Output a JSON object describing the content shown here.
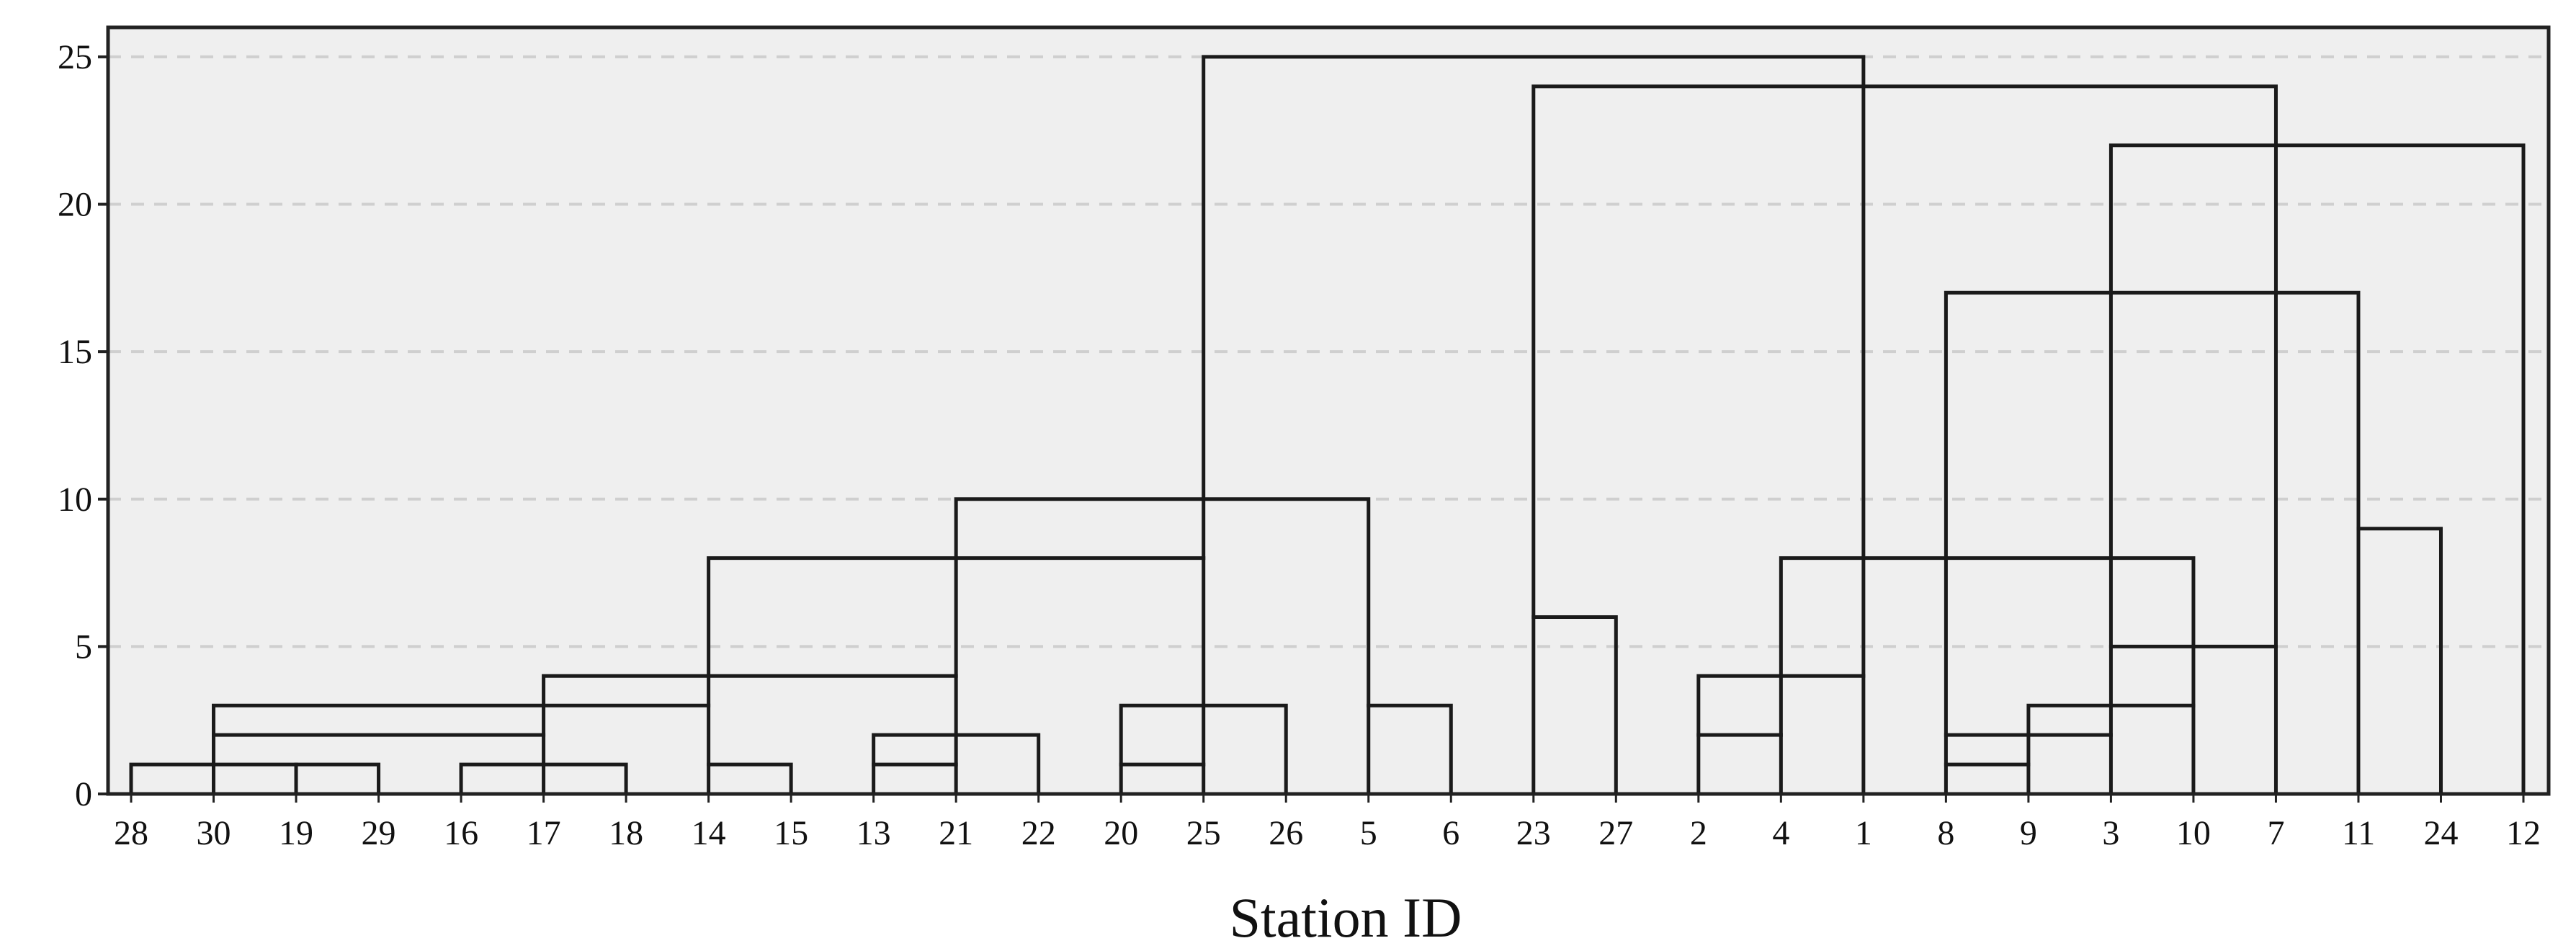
{
  "chart_data": {
    "type": "dendrogram",
    "title": "",
    "xlabel": "Station ID",
    "ylabel": "",
    "ylim": [
      0,
      26
    ],
    "yticks": [
      0,
      5,
      10,
      15,
      20,
      25
    ],
    "grid": "horizontal dashed",
    "background": "#efefef",
    "leaves": [
      "28",
      "30",
      "19",
      "29",
      "16",
      "17",
      "18",
      "14",
      "15",
      "13",
      "21",
      "22",
      "20",
      "25",
      "26",
      "5",
      "6",
      "23",
      "27",
      "2",
      "4",
      "1",
      "8",
      "9",
      "3",
      "10",
      "7",
      "11",
      "24",
      "12"
    ],
    "merges": [
      {
        "left": "L:28",
        "right": "L:30",
        "height": 1
      },
      {
        "left": "L:30",
        "right": "L:19",
        "height": 1
      },
      {
        "left": "L:19",
        "right": "L:29",
        "height": 1
      },
      {
        "left": "L:16",
        "right": "L:17",
        "height": 1
      },
      {
        "left": "L:17",
        "right": "L:18",
        "height": 1
      },
      {
        "left": "L:14",
        "right": "L:15",
        "height": 1
      },
      {
        "left": "L:13",
        "right": "L:21",
        "height": 1
      },
      {
        "left": "L:20",
        "right": "L:25",
        "height": 1
      },
      {
        "left": "L:8",
        "right": "L:9",
        "height": 1
      },
      {
        "left": "L:30",
        "right": "L:17",
        "height": 2
      },
      {
        "left": "L:13",
        "right": "L:22",
        "height": 2
      },
      {
        "left": "L:2",
        "right": "L:4",
        "height": 2
      },
      {
        "left": "L:8",
        "right": "L:3",
        "height": 2
      },
      {
        "left": "L:30",
        "right": "L:14",
        "height": 3
      },
      {
        "left": "L:20",
        "right": "L:26",
        "height": 3
      },
      {
        "left": "L:5",
        "right": "L:6",
        "height": 3
      },
      {
        "left": "L:9",
        "right": "L:10",
        "height": 3
      },
      {
        "left": "L:17",
        "right": "L:21",
        "height": 4
      },
      {
        "left": "L:2",
        "right": "L:1",
        "height": 4
      },
      {
        "left": "L:3",
        "right": "L:7",
        "height": 5
      },
      {
        "left": "L:23",
        "right": "L:27",
        "height": 6
      },
      {
        "left": "L:14",
        "right": "L:25",
        "height": 8
      },
      {
        "left": "L:4",
        "right": "L:10",
        "height": 8
      },
      {
        "left": "L:11",
        "right": "L:24",
        "height": 9
      },
      {
        "left": "L:21",
        "right": "L:5",
        "height": 10
      },
      {
        "left": "L:8",
        "right": "L:11",
        "height": 17
      },
      {
        "left": "L:3",
        "right": "L:12",
        "height": 22
      },
      {
        "left": "L:23",
        "right": "L:7",
        "height": 24
      },
      {
        "left": "L:25",
        "right": "L:1",
        "height": 25
      }
    ]
  }
}
